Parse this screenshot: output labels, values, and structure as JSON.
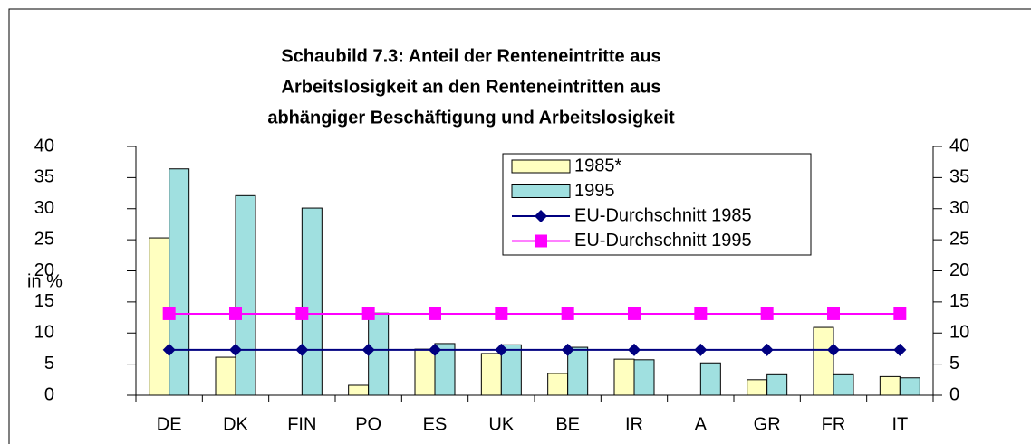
{
  "chart_data": {
    "type": "bar_line",
    "title": [
      "Schaubild 7.3: Anteil der Renteneintritte aus",
      "Arbeitslosigkeit an den  Renteneintritten aus",
      "abhängiger Beschäftigung und Arbeitslosigkeit"
    ],
    "y_label": "in %",
    "categories": [
      "DE",
      "DK",
      "FIN",
      "PO",
      "ES",
      "UK",
      "BE",
      "IR",
      "A",
      "GR",
      "FR",
      "IT"
    ],
    "series": [
      {
        "name": "1985*",
        "type": "bar",
        "color": "#ffffc0",
        "values": [
          25.3,
          6.1,
          null,
          1.6,
          7.4,
          6.7,
          3.5,
          5.8,
          null,
          2.5,
          10.9,
          3.0
        ]
      },
      {
        "name": "1995",
        "type": "bar",
        "color": "#a0e0e0",
        "values": [
          36.4,
          32.1,
          30.1,
          13.2,
          8.3,
          8.1,
          7.7,
          5.7,
          5.2,
          3.3,
          3.3,
          2.8
        ]
      },
      {
        "name": "EU-Durchschnitt 1985",
        "type": "line",
        "marker": "diamond",
        "color": "#000080",
        "values": [
          7.3,
          7.3,
          7.3,
          7.3,
          7.3,
          7.3,
          7.3,
          7.3,
          7.3,
          7.3,
          7.3,
          7.3
        ]
      },
      {
        "name": "EU-Durchschnitt 1995",
        "type": "line",
        "marker": "square",
        "color": "#ff00ff",
        "axis": "y2",
        "values": [
          13.1,
          13.1,
          13.1,
          13.1,
          13.1,
          13.1,
          13.1,
          13.1,
          13.1,
          13.1,
          13.1,
          13.1
        ]
      }
    ],
    "ylim": [
      0,
      40
    ],
    "yticks": [
      0,
      5,
      10,
      15,
      20,
      25,
      30,
      35,
      40
    ],
    "y2lim": [
      0,
      40
    ],
    "y2ticks": [
      0,
      5,
      10,
      15,
      20,
      25,
      30,
      35,
      40
    ]
  }
}
